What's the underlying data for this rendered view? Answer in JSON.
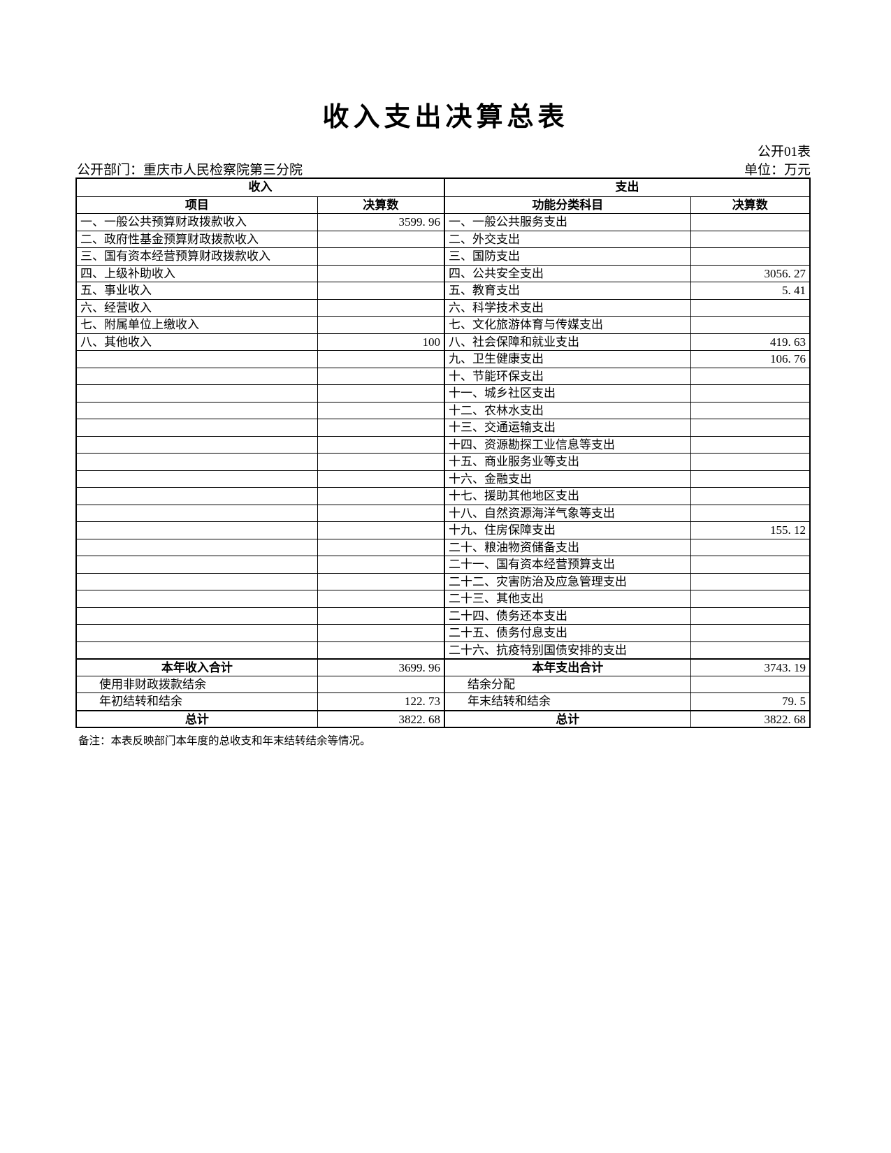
{
  "page": {
    "title": "收入支出决算总表",
    "table_code": "公开01表",
    "department": "公开部门：重庆市人民检察院第三分院",
    "unit": "单位：万元",
    "footnote": "备注：本表反映部门本年度的总收支和年末结转结余等情况。"
  },
  "table": {
    "income_header": "收入",
    "expense_header": "支出",
    "columns": {
      "income_item": "项目",
      "income_value": "决算数",
      "expense_item": "功能分类科目",
      "expense_value": "决算数"
    },
    "income_rows": [
      {
        "item": "一、一般公共预算财政拨款收入",
        "value": "3599. 96"
      },
      {
        "item": "二、政府性基金预算财政拨款收入",
        "value": ""
      },
      {
        "item": "三、国有资本经营预算财政拨款收入",
        "value": ""
      },
      {
        "item": "四、上级补助收入",
        "value": ""
      },
      {
        "item": "五、事业收入",
        "value": ""
      },
      {
        "item": "六、经营收入",
        "value": ""
      },
      {
        "item": "七、附属单位上缴收入",
        "value": ""
      },
      {
        "item": "八、其他收入",
        "value": "100"
      }
    ],
    "expense_rows": [
      {
        "item": "一、一般公共服务支出",
        "value": ""
      },
      {
        "item": "二、外交支出",
        "value": ""
      },
      {
        "item": "三、国防支出",
        "value": ""
      },
      {
        "item": "四、公共安全支出",
        "value": "3056. 27"
      },
      {
        "item": "五、教育支出",
        "value": "5. 41"
      },
      {
        "item": "六、科学技术支出",
        "value": ""
      },
      {
        "item": "七、文化旅游体育与传媒支出",
        "value": ""
      },
      {
        "item": "八、社会保障和就业支出",
        "value": "419. 63"
      },
      {
        "item": "九、卫生健康支出",
        "value": "106. 76"
      },
      {
        "item": "十、节能环保支出",
        "value": ""
      },
      {
        "item": "十一、城乡社区支出",
        "value": ""
      },
      {
        "item": "十二、农林水支出",
        "value": ""
      },
      {
        "item": "十三、交通运输支出",
        "value": ""
      },
      {
        "item": "十四、资源勘探工业信息等支出",
        "value": ""
      },
      {
        "item": "十五、商业服务业等支出",
        "value": ""
      },
      {
        "item": "十六、金融支出",
        "value": ""
      },
      {
        "item": "十七、援助其他地区支出",
        "value": ""
      },
      {
        "item": "十八、自然资源海洋气象等支出",
        "value": ""
      },
      {
        "item": "十九、住房保障支出",
        "value": "155. 12"
      },
      {
        "item": "二十、粮油物资储备支出",
        "value": ""
      },
      {
        "item": "二十一、国有资本经营预算支出",
        "value": ""
      },
      {
        "item": "二十二、灾害防治及应急管理支出",
        "value": ""
      },
      {
        "item": "二十三、其他支出",
        "value": ""
      },
      {
        "item": "二十四、债务还本支出",
        "value": ""
      },
      {
        "item": "二十五、债务付息支出",
        "value": ""
      },
      {
        "item": "二十六、抗疫特别国债安排的支出",
        "value": ""
      }
    ],
    "summary_rows": [
      {
        "left_item": "本年收入合计",
        "left_value": "3699. 96",
        "right_item": "本年支出合计",
        "right_value": "3743. 19",
        "emphasis": "total"
      },
      {
        "left_item": "使用非财政拨款结余",
        "left_value": "",
        "right_item": "结余分配",
        "right_value": "",
        "emphasis": "sub"
      },
      {
        "left_item": "年初结转和结余",
        "left_value": "122. 73",
        "right_item": "年末结转和结余",
        "right_value": "79. 5",
        "emphasis": "sub"
      },
      {
        "left_item": "总计",
        "left_value": "3822. 68",
        "right_item": "总计",
        "right_value": "3822. 68",
        "emphasis": "total"
      }
    ]
  }
}
